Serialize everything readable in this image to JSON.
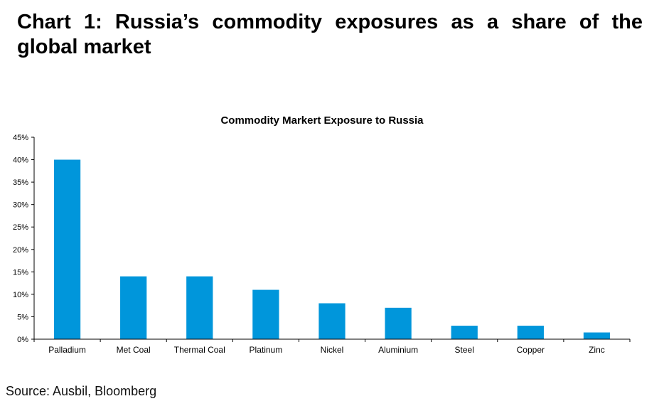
{
  "page": {
    "heading": "Chart 1: Russia’s commodity exposures as a share of the global market",
    "source": "Source: Ausbil, Bloomberg"
  },
  "chart_data": {
    "type": "bar",
    "title": "Commodity Markert Exposure to Russia",
    "categories": [
      "Palladium",
      "Met Coal",
      "Thermal Coal",
      "Platinum",
      "Nickel",
      "Aluminium",
      "Steel",
      "Copper",
      "Zinc"
    ],
    "values": [
      40,
      14,
      14,
      11,
      8,
      7,
      3,
      3,
      1.5
    ],
    "value_unit": "%",
    "xlabel": "",
    "ylabel": "",
    "ylim": [
      0,
      45
    ],
    "yticks": [
      "0%",
      "5%",
      "10%",
      "15%",
      "20%",
      "25%",
      "30%",
      "35%",
      "40%",
      "45%"
    ],
    "grid": false,
    "legend": "none",
    "bar_color": "#0096DB"
  }
}
